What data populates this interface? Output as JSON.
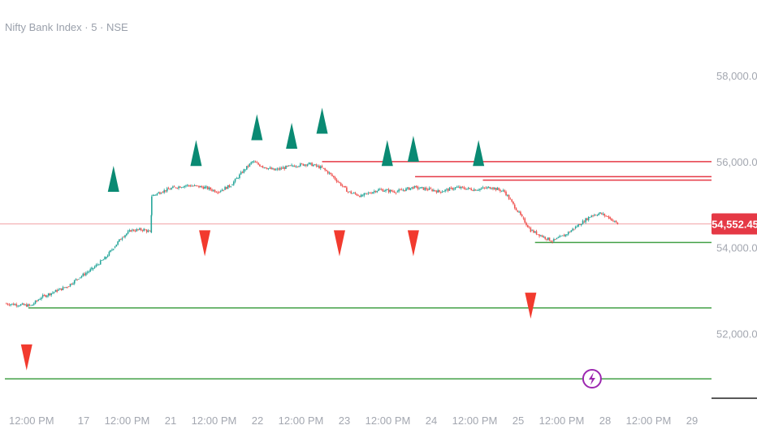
{
  "chart_data": {
    "type": "candlestick",
    "title": "Nifty Bank Index · 5 · NSE",
    "y_ticks": [
      "58,000.00",
      "56,000.00",
      "54,000.00",
      "52,000.00"
    ],
    "y_tick_values": [
      58000,
      56000,
      54000,
      52000
    ],
    "ylim": [
      50500,
      59000
    ],
    "x_ticks": [
      {
        "label": "12:00 PM",
        "pos": 0.4
      },
      {
        "label": "17",
        "pos": 1.0
      },
      {
        "label": "12:00 PM",
        "pos": 1.5
      },
      {
        "label": "21",
        "pos": 2.0
      },
      {
        "label": "12:00 PM",
        "pos": 2.5
      },
      {
        "label": "22",
        "pos": 3.0
      },
      {
        "label": "12:00 PM",
        "pos": 3.5
      },
      {
        "label": "23",
        "pos": 4.0
      },
      {
        "label": "12:00 PM",
        "pos": 4.5
      },
      {
        "label": "24",
        "pos": 5.0
      },
      {
        "label": "12:00 PM",
        "pos": 5.5
      },
      {
        "label": "25",
        "pos": 6.0
      },
      {
        "label": "12:00 PM",
        "pos": 6.5
      },
      {
        "label": "28",
        "pos": 7.0
      },
      {
        "label": "12:00 PM",
        "pos": 7.5
      },
      {
        "label": "29",
        "pos": 8.0
      }
    ],
    "xlim": [
      0.0,
      8.0
    ],
    "current_price": "54,552.45",
    "current_price_value": 54552.45,
    "price_path": [
      [
        0.0,
        52700
      ],
      [
        0.3,
        52650
      ],
      [
        0.42,
        52850
      ],
      [
        0.6,
        53000
      ],
      [
        0.72,
        53100
      ],
      [
        0.85,
        53300
      ],
      [
        1.0,
        53500
      ],
      [
        1.15,
        53750
      ],
      [
        1.25,
        54000
      ],
      [
        1.35,
        54250
      ],
      [
        1.45,
        54400
      ],
      [
        1.6,
        54420
      ],
      [
        1.68,
        54350
      ],
      [
        1.69,
        55200
      ],
      [
        1.8,
        55300
      ],
      [
        1.95,
        55400
      ],
      [
        2.1,
        55450
      ],
      [
        2.3,
        55400
      ],
      [
        2.45,
        55300
      ],
      [
        2.6,
        55450
      ],
      [
        2.75,
        55800
      ],
      [
        2.85,
        56000
      ],
      [
        2.95,
        55900
      ],
      [
        3.1,
        55800
      ],
      [
        3.3,
        55900
      ],
      [
        3.5,
        55950
      ],
      [
        3.65,
        55850
      ],
      [
        3.75,
        55700
      ],
      [
        3.85,
        55500
      ],
      [
        3.95,
        55300
      ],
      [
        4.1,
        55200
      ],
      [
        4.3,
        55350
      ],
      [
        4.5,
        55300
      ],
      [
        4.7,
        55400
      ],
      [
        4.9,
        55350
      ],
      [
        5.0,
        55300
      ],
      [
        5.2,
        55400
      ],
      [
        5.4,
        55350
      ],
      [
        5.6,
        55400
      ],
      [
        5.75,
        55300
      ],
      [
        5.85,
        55000
      ],
      [
        5.95,
        54700
      ],
      [
        6.05,
        54400
      ],
      [
        6.2,
        54250
      ],
      [
        6.3,
        54150
      ],
      [
        6.45,
        54300
      ],
      [
        6.55,
        54450
      ],
      [
        6.65,
        54600
      ],
      [
        6.75,
        54750
      ],
      [
        6.85,
        54800
      ],
      [
        6.95,
        54700
      ],
      [
        7.05,
        54552
      ]
    ],
    "buy_signals": [
      {
        "x": 0.25,
        "y": 51450
      },
      {
        "x": 2.3,
        "y": 54100
      },
      {
        "x": 3.85,
        "y": 54100
      },
      {
        "x": 4.7,
        "y": 54100
      },
      {
        "x": 6.05,
        "y": 52650
      }
    ],
    "sell_signals": [
      {
        "x": 1.25,
        "y": 55600
      },
      {
        "x": 2.2,
        "y": 56200
      },
      {
        "x": 2.9,
        "y": 56800
      },
      {
        "x": 3.3,
        "y": 56600
      },
      {
        "x": 3.65,
        "y": 56950
      },
      {
        "x": 4.4,
        "y": 56200
      },
      {
        "x": 4.7,
        "y": 56300
      },
      {
        "x": 5.45,
        "y": 56200
      }
    ],
    "resistance_lines": [
      {
        "x_start": 3.65,
        "y": 56000
      },
      {
        "x_start": 4.72,
        "y": 55650
      },
      {
        "x_start": 5.5,
        "y": 55570
      }
    ],
    "support_lines": [
      {
        "x_start": 0.27,
        "y": 52600
      },
      {
        "x_start": 6.1,
        "y": 54120
      },
      {
        "x_start": 0.0,
        "y": 50950
      }
    ],
    "colors": {
      "up": "#26a69a",
      "down": "#ef5350",
      "buy_signal": "#f23a2e",
      "sell_signal": "#0a8a73",
      "resistance": "#e53945",
      "support": "#43a047",
      "price_tag": "#e53945",
      "lightning": "#9c27b0"
    },
    "grid": false,
    "lightning_marker": {
      "x": 6.7,
      "icon": "lightning-icon"
    }
  }
}
